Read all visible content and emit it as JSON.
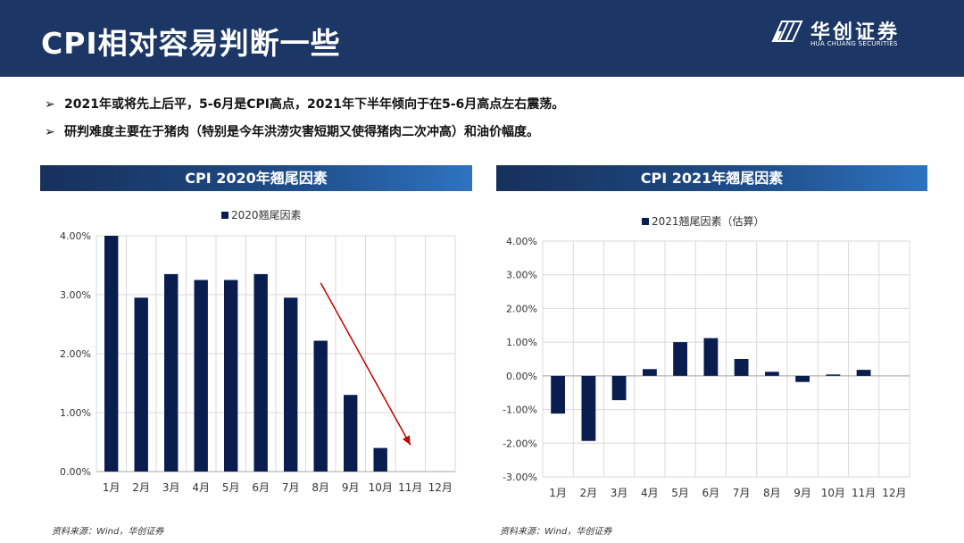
{
  "header": {
    "title": "CPI相对容易判断一些",
    "logo_cn": "华创证券",
    "logo_en": "HUA CHUANG SECURITIES",
    "bg_color": "#1c3765"
  },
  "bullets": [
    "2021年或将先上后平，5-6月是CPI高点，2021年下半年倾向于在5-6月高点左右震荡。",
    "研判难度主要在于猪肉（特别是今年洪涝灾害短期又使得猪肉二次冲高）和油价幅度。"
  ],
  "bullet_marker": "➢",
  "left_panel": {
    "title": "CPI 2020年翘尾因素",
    "source": "资料来源：Wind，华创证券"
  },
  "right_panel": {
    "title": "CPI 2021年翘尾因素",
    "source": "资料来源：Wind，华创证券"
  },
  "chart_data": [
    {
      "type": "bar",
      "title": "",
      "legend": "2020翘尾因素",
      "legend_position": "top",
      "categories": [
        "1月",
        "2月",
        "3月",
        "4月",
        "5月",
        "6月",
        "7月",
        "8月",
        "9月",
        "10月",
        "11月",
        "12月"
      ],
      "values": [
        4.0,
        2.95,
        3.35,
        3.25,
        3.25,
        3.35,
        2.95,
        2.22,
        1.3,
        0.4,
        null,
        null
      ],
      "ylim": [
        0,
        4
      ],
      "yticks": [
        "0.00%",
        "1.00%",
        "2.00%",
        "3.00%",
        "4.00%"
      ],
      "bar_color": "#0a1d4f",
      "annotation": "downward trend arrow from 8月 to 11月",
      "annotation_color": "#c00000"
    },
    {
      "type": "bar",
      "title": "",
      "legend": "2021翘尾因素（估算）",
      "legend_position": "top",
      "categories": [
        "1月",
        "2月",
        "3月",
        "4月",
        "5月",
        "6月",
        "7月",
        "8月",
        "9月",
        "10月",
        "11月",
        "12月"
      ],
      "values": [
        -1.12,
        -1.93,
        -0.72,
        0.2,
        1.0,
        1.12,
        0.5,
        0.12,
        -0.18,
        0.04,
        0.18,
        null
      ],
      "ylim": [
        -3,
        4
      ],
      "yticks": [
        "-3.00%",
        "-2.00%",
        "-1.00%",
        "0.00%",
        "1.00%",
        "2.00%",
        "3.00%",
        "4.00%"
      ],
      "bar_color": "#0a1d4f"
    }
  ]
}
